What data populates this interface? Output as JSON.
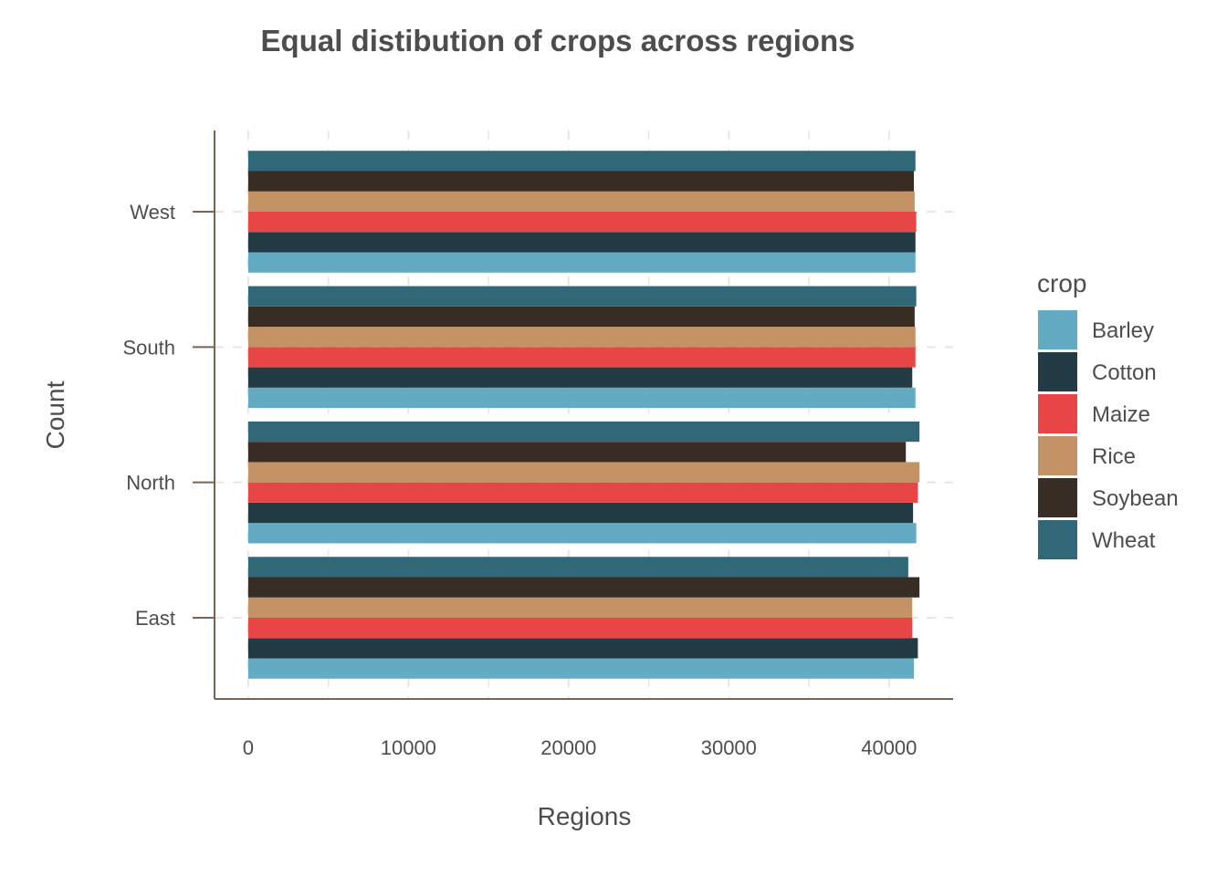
{
  "chart_data": {
    "type": "bar",
    "orientation": "horizontal",
    "title": "Equal distibution of crops across regions",
    "xlabel": "Regions",
    "ylabel": "Count",
    "xlim": [
      -2100,
      44000
    ],
    "xticks": [
      0,
      10000,
      20000,
      30000,
      40000
    ],
    "categories": [
      "East",
      "North",
      "South",
      "West"
    ],
    "legend_title": "crop",
    "legend_position": "right",
    "grid": true,
    "series": [
      {
        "name": "Barley",
        "color": "#63ABC3",
        "values": [
          41550,
          41700,
          41650,
          41650
        ]
      },
      {
        "name": "Cotton",
        "color": "#233B45",
        "values": [
          41800,
          41500,
          41450,
          41650
        ]
      },
      {
        "name": "Maize",
        "color": "#E84547",
        "values": [
          41450,
          41800,
          41650,
          41700
        ]
      },
      {
        "name": "Rice",
        "color": "#C39365",
        "values": [
          41450,
          41900,
          41650,
          41600
        ]
      },
      {
        "name": "Soybean",
        "color": "#382D24",
        "values": [
          41900,
          41050,
          41600,
          41550
        ]
      },
      {
        "name": "Wheat",
        "color": "#306877",
        "values": [
          41200,
          41900,
          41700,
          41650
        ]
      }
    ]
  },
  "colors": {
    "axis": "#7A6450",
    "grid": "#EDE5DA",
    "text": "#4d4d4d"
  }
}
